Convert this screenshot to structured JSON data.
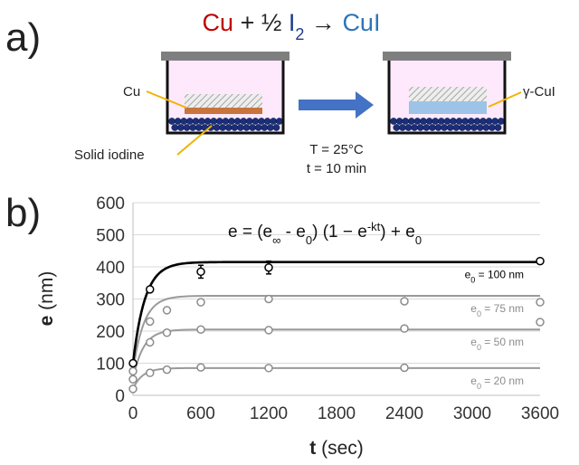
{
  "panel_a": {
    "label": "a)",
    "reaction": {
      "reactant1": "Cu",
      "plus": "+ ½",
      "reactant2": "I",
      "reactant2_sub": "2",
      "arrow": "→",
      "product": "CuI"
    },
    "label_cu": "Cu",
    "label_iodine": "Solid iodine",
    "label_product": "γ-CuI",
    "condition_temp": "T = 25°C",
    "condition_time": "t = 10 min",
    "colors": {
      "cu": "#c00000",
      "iodine": "#1f3a8f",
      "cui": "#2e75b6",
      "chamber": "#fde9fb",
      "film_cu": "#c8743c",
      "film_cui": "#9dc3e6",
      "bead": "#1a2f7a",
      "arrow": "#4472c4",
      "pointer": "#f0b400"
    }
  },
  "panel_b": {
    "label": "b)",
    "formula": {
      "lhs": "e = (e",
      "sub_inf": "∞",
      "minus": " - e",
      "sub_0a": "0",
      "mid": ") (1 − e",
      "sup": "-kt",
      "tail": ") + e",
      "sub_0b": "0"
    }
  },
  "chart_data": {
    "type": "line",
    "xlabel": "t (sec)",
    "ylabel": "e (nm)",
    "xlim": [
      0,
      3600
    ],
    "ylim": [
      0,
      600
    ],
    "xticks": [
      0,
      600,
      1200,
      1800,
      2400,
      3000,
      3600
    ],
    "yticks": [
      0,
      100,
      200,
      300,
      400,
      500,
      600
    ],
    "grid": "horizontal",
    "series": [
      {
        "name": "e0 = 100 nm",
        "label_main": "e",
        "label_sub": "0",
        "label_rest": " = 100 nm",
        "color": "#000000",
        "e0": 100,
        "einf": 415,
        "k": 0.0095,
        "points": [
          {
            "x": 0,
            "y": 100,
            "err": 0
          },
          {
            "x": 150,
            "y": 330,
            "err": 0
          },
          {
            "x": 600,
            "y": 385,
            "err": 20
          },
          {
            "x": 1200,
            "y": 398,
            "err": 20
          },
          {
            "x": 3600,
            "y": 418,
            "err": 0
          }
        ]
      },
      {
        "name": "e0 = 75 nm",
        "label_main": "e",
        "label_sub": "0",
        "label_rest": " = 75 nm",
        "color": "#9a9a9a",
        "e0": 75,
        "einf": 310,
        "k": 0.0105,
        "points": [
          {
            "x": 0,
            "y": 75,
            "err": 0
          },
          {
            "x": 150,
            "y": 230,
            "err": 0
          },
          {
            "x": 300,
            "y": 265,
            "err": 0
          },
          {
            "x": 600,
            "y": 290,
            "err": 0
          },
          {
            "x": 1200,
            "y": 300,
            "err": 0
          },
          {
            "x": 2400,
            "y": 293,
            "err": 0
          },
          {
            "x": 3600,
            "y": 290,
            "err": 0
          }
        ]
      },
      {
        "name": "e0 = 50 nm",
        "label_main": "e",
        "label_sub": "0",
        "label_rest": " = 50 nm",
        "color": "#9a9a9a",
        "e0": 50,
        "einf": 205,
        "k": 0.011,
        "points": [
          {
            "x": 0,
            "y": 50,
            "err": 0
          },
          {
            "x": 150,
            "y": 165,
            "err": 0
          },
          {
            "x": 300,
            "y": 195,
            "err": 0
          },
          {
            "x": 600,
            "y": 205,
            "err": 0
          },
          {
            "x": 1200,
            "y": 203,
            "err": 0
          },
          {
            "x": 2400,
            "y": 208,
            "err": 0
          },
          {
            "x": 3600,
            "y": 228,
            "err": 0
          }
        ]
      },
      {
        "name": "e0 = 20 nm",
        "label_main": "e",
        "label_sub": "0",
        "label_rest": " = 20 nm",
        "color": "#9a9a9a",
        "e0": 20,
        "einf": 85,
        "k": 0.012,
        "points": [
          {
            "x": 0,
            "y": 20,
            "err": 0
          },
          {
            "x": 150,
            "y": 70,
            "err": 0
          },
          {
            "x": 300,
            "y": 80,
            "err": 0
          },
          {
            "x": 600,
            "y": 87,
            "err": 0
          },
          {
            "x": 1200,
            "y": 85,
            "err": 0
          },
          {
            "x": 2400,
            "y": 86,
            "err": 0
          }
        ]
      }
    ]
  }
}
